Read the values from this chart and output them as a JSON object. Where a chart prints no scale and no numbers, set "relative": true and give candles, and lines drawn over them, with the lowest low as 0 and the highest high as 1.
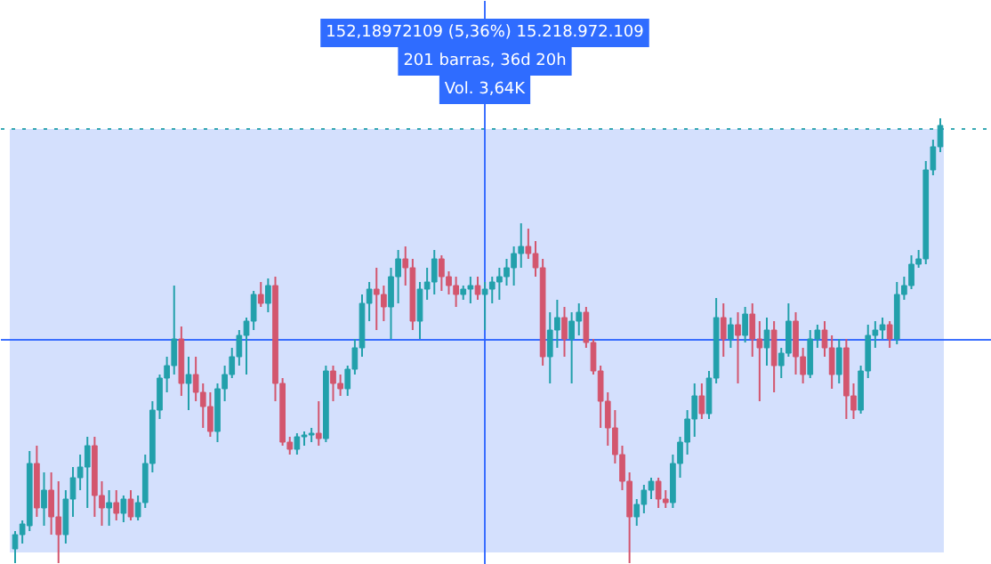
{
  "chart_data": {
    "type": "candlestick",
    "relative": true,
    "categories": [
      null,
      null,
      null,
      null,
      null,
      null,
      null,
      null,
      null,
      null,
      null,
      null,
      null,
      null,
      null,
      null,
      null,
      null,
      null,
      null,
      null,
      null,
      null,
      null,
      null,
      null,
      null,
      null,
      null,
      null,
      null,
      null,
      null,
      null,
      null,
      null,
      null,
      null,
      null,
      null,
      null,
      null,
      null,
      null,
      null,
      null,
      null,
      null,
      null,
      null,
      null,
      null,
      null,
      null,
      null,
      null,
      null,
      null,
      null,
      null,
      null,
      null,
      null,
      null,
      null,
      null,
      null,
      null,
      null,
      null,
      null,
      null,
      null,
      null,
      null,
      null,
      null,
      null,
      null,
      null,
      null,
      null,
      null,
      null,
      null,
      null,
      null,
      null,
      null,
      null,
      null,
      null,
      null,
      null,
      null,
      null,
      null,
      null,
      null,
      null,
      null,
      null,
      null,
      null,
      null,
      null,
      null,
      null,
      null,
      null,
      null,
      null,
      null,
      null,
      null,
      null,
      null,
      null,
      null,
      null,
      null,
      null,
      null,
      null,
      null,
      null,
      null,
      null,
      null
    ],
    "ohlc": [
      [
        0.032,
        0.072,
        0,
        0.064
      ],
      [
        0.064,
        0.096,
        0.044,
        0.088
      ],
      [
        0.084,
        0.252,
        0.072,
        0.224
      ],
      [
        0.224,
        0.264,
        0.104,
        0.124
      ],
      [
        0.124,
        0.204,
        0.084,
        0.164
      ],
      [
        0.164,
        0.204,
        0.064,
        0.104
      ],
      [
        0.104,
        0.184,
        0,
        0.064
      ],
      [
        0.064,
        0.164,
        0.044,
        0.144
      ],
      [
        0.144,
        0.216,
        0.104,
        0.192
      ],
      [
        0.192,
        0.244,
        0.164,
        0.216
      ],
      [
        0.216,
        0.284,
        0.124,
        0.264
      ],
      [
        0.264,
        0.284,
        0.104,
        0.152
      ],
      [
        0.152,
        0.184,
        0.084,
        0.124
      ],
      [
        0.124,
        0.164,
        0.084,
        0.136
      ],
      [
        0.136,
        0.164,
        0.096,
        0.112
      ],
      [
        0.112,
        0.152,
        0.092,
        0.144
      ],
      [
        0.144,
        0.164,
        0.096,
        0.104
      ],
      [
        0.104,
        0.152,
        0.096,
        0.136
      ],
      [
        0.136,
        0.244,
        0.124,
        0.224
      ],
      [
        0.224,
        0.364,
        0.204,
        0.344
      ],
      [
        0.344,
        0.424,
        0.324,
        0.416
      ],
      [
        0.416,
        0.464,
        0.384,
        0.444
      ],
      [
        0.444,
        0.624,
        0.424,
        0.504
      ],
      [
        0.504,
        0.532,
        0.376,
        0.404
      ],
      [
        0.404,
        0.464,
        0.344,
        0.424
      ],
      [
        0.424,
        0.464,
        0.364,
        0.384
      ],
      [
        0.384,
        0.404,
        0.304,
        0.352
      ],
      [
        0.352,
        0.384,
        0.284,
        0.296
      ],
      [
        0.296,
        0.404,
        0.272,
        0.392
      ],
      [
        0.392,
        0.444,
        0.364,
        0.424
      ],
      [
        0.424,
        0.484,
        0.416,
        0.464
      ],
      [
        0.464,
        0.524,
        0.444,
        0.512
      ],
      [
        0.512,
        0.552,
        0.424,
        0.544
      ],
      [
        0.544,
        0.612,
        0.524,
        0.604
      ],
      [
        0.604,
        0.632,
        0.576,
        0.584
      ],
      [
        0.584,
        0.64,
        0.564,
        0.624
      ],
      [
        0.624,
        0.644,
        0.364,
        0.404
      ],
      [
        0.404,
        0.416,
        0.264,
        0.272
      ],
      [
        0.272,
        0.284,
        0.244,
        0.256
      ],
      [
        0.256,
        0.292,
        0.244,
        0.284
      ],
      [
        0.284,
        0.296,
        0.264,
        0.288
      ],
      [
        0.288,
        0.304,
        0.272,
        0.292
      ],
      [
        0.292,
        0.364,
        0.264,
        0.28
      ],
      [
        0.28,
        0.444,
        0.272,
        0.432
      ],
      [
        0.432,
        0.444,
        0.364,
        0.404
      ],
      [
        0.404,
        0.424,
        0.376,
        0.392
      ],
      [
        0.392,
        0.444,
        0.376,
        0.436
      ],
      [
        0.436,
        0.504,
        0.424,
        0.484
      ],
      [
        0.484,
        0.604,
        0.464,
        0.584
      ],
      [
        0.584,
        0.632,
        0.544,
        0.616
      ],
      [
        0.616,
        0.664,
        0.524,
        0.604
      ],
      [
        0.604,
        0.624,
        0.544,
        0.576
      ],
      [
        0.576,
        0.664,
        0.504,
        0.644
      ],
      [
        0.644,
        0.704,
        0.584,
        0.684
      ],
      [
        0.684,
        0.712,
        0.624,
        0.664
      ],
      [
        0.664,
        0.684,
        0.524,
        0.544
      ],
      [
        0.544,
        0.632,
        0.504,
        0.616
      ],
      [
        0.616,
        0.664,
        0.592,
        0.632
      ],
      [
        0.632,
        0.704,
        0.604,
        0.684
      ],
      [
        0.684,
        0.692,
        0.612,
        0.644
      ],
      [
        0.644,
        0.656,
        0.604,
        0.624
      ],
      [
        0.624,
        0.644,
        0.576,
        0.604
      ],
      [
        0.604,
        0.624,
        0.592,
        0.616
      ],
      [
        0.616,
        0.644,
        0.584,
        0.624
      ],
      [
        0.624,
        0.644,
        0.592,
        0.604
      ],
      [
        0.604,
        0.632,
        0.524,
        0.616
      ],
      [
        0.616,
        0.644,
        0.584,
        0.632
      ],
      [
        0.632,
        0.664,
        0.592,
        0.644
      ],
      [
        0.644,
        0.684,
        0.624,
        0.664
      ],
      [
        0.664,
        0.712,
        0.624,
        0.696
      ],
      [
        0.696,
        0.764,
        0.664,
        0.712
      ],
      [
        0.712,
        0.752,
        0.684,
        0.696
      ],
      [
        0.696,
        0.724,
        0.644,
        0.664
      ],
      [
        0.664,
        0.684,
        0.444,
        0.464
      ],
      [
        0.464,
        0.564,
        0.404,
        0.524
      ],
      [
        0.524,
        0.592,
        0.484,
        0.552
      ],
      [
        0.552,
        0.576,
        0.464,
        0.504
      ],
      [
        0.504,
        0.564,
        0.404,
        0.544
      ],
      [
        0.544,
        0.584,
        0.512,
        0.564
      ],
      [
        0.564,
        0.576,
        0.484,
        0.496
      ],
      [
        0.496,
        0.504,
        0.424,
        0.432
      ],
      [
        0.432,
        0.444,
        0.304,
        0.364
      ],
      [
        0.364,
        0.384,
        0.264,
        0.304
      ],
      [
        0.304,
        0.344,
        0.224,
        0.244
      ],
      [
        0.244,
        0.264,
        0.164,
        0.184
      ],
      [
        0.184,
        0.204,
        0,
        0.104
      ],
      [
        0.104,
        0.144,
        0.084,
        0.132
      ],
      [
        0.132,
        0.176,
        0.112,
        0.164
      ],
      [
        0.164,
        0.192,
        0.144,
        0.184
      ],
      [
        0.184,
        0.192,
        0.124,
        0.144
      ],
      [
        0.144,
        0.164,
        0.124,
        0.136
      ],
      [
        0.136,
        0.244,
        0.124,
        0.224
      ],
      [
        0.224,
        0.284,
        0.192,
        0.272
      ],
      [
        0.272,
        0.344,
        0.244,
        0.324
      ],
      [
        0.324,
        0.404,
        0.284,
        0.376
      ],
      [
        0.376,
        0.404,
        0.324,
        0.336
      ],
      [
        0.336,
        0.432,
        0.324,
        0.416
      ],
      [
        0.416,
        0.596,
        0.404,
        0.552
      ],
      [
        0.552,
        0.584,
        0.464,
        0.504
      ],
      [
        0.504,
        0.552,
        0.484,
        0.536
      ],
      [
        0.536,
        0.564,
        0.404,
        0.512
      ],
      [
        0.512,
        0.576,
        0.496,
        0.56
      ],
      [
        0.56,
        0.584,
        0.464,
        0.504
      ],
      [
        0.504,
        0.544,
        0.364,
        0.484
      ],
      [
        0.484,
        0.552,
        0.444,
        0.524
      ],
      [
        0.524,
        0.544,
        0.384,
        0.444
      ],
      [
        0.444,
        0.484,
        0.416,
        0.472
      ],
      [
        0.472,
        0.584,
        0.464,
        0.544
      ],
      [
        0.544,
        0.564,
        0.424,
        0.464
      ],
      [
        0.464,
        0.484,
        0.404,
        0.424
      ],
      [
        0.424,
        0.524,
        0.416,
        0.504
      ],
      [
        0.504,
        0.536,
        0.484,
        0.524
      ],
      [
        0.524,
        0.544,
        0.464,
        0.484
      ],
      [
        0.484,
        0.512,
        0.392,
        0.424
      ],
      [
        0.424,
        0.504,
        0.404,
        0.484
      ],
      [
        0.484,
        0.504,
        0.324,
        0.376
      ],
      [
        0.376,
        0.404,
        0.324,
        0.344
      ],
      [
        0.344,
        0.444,
        0.336,
        0.432
      ],
      [
        0.432,
        0.536,
        0.416,
        0.512
      ],
      [
        0.512,
        0.544,
        0.484,
        0.524
      ],
      [
        0.524,
        0.552,
        0.504,
        0.536
      ],
      [
        0.536,
        0.544,
        0.484,
        0.504
      ],
      [
        0.504,
        0.632,
        0.492,
        0.604
      ],
      [
        0.604,
        0.644,
        0.592,
        0.624
      ],
      [
        0.624,
        0.692,
        0.616,
        0.672
      ],
      [
        0.672,
        0.704,
        0.664,
        0.684
      ],
      [
        0.684,
        0.904,
        0.672,
        0.884
      ],
      [
        0.884,
        0.952,
        0.872,
        0.936
      ],
      [
        0.936,
        1.0,
        0.924,
        0.984
      ]
    ],
    "colors": [
      "#22a0ab",
      "#22a0ab",
      "#22a0ab",
      "#d3566e",
      "#22a0ab",
      "#d3566e",
      "#d3566e",
      "#22a0ab",
      "#22a0ab",
      "#22a0ab",
      "#22a0ab",
      "#d3566e",
      "#d3566e",
      "#22a0ab",
      "#d3566e",
      "#22a0ab",
      "#d3566e",
      "#22a0ab",
      "#22a0ab",
      "#22a0ab",
      "#22a0ab",
      "#22a0ab",
      "#22a0ab",
      "#d3566e",
      "#22a0ab",
      "#d3566e",
      "#d3566e",
      "#d3566e",
      "#22a0ab",
      "#22a0ab",
      "#22a0ab",
      "#22a0ab",
      "#22a0ab",
      "#22a0ab",
      "#d3566e",
      "#22a0ab",
      "#d3566e",
      "#d3566e",
      "#d3566e",
      "#22a0ab",
      "#22a0ab",
      "#22a0ab",
      "#d3566e",
      "#22a0ab",
      "#d3566e",
      "#d3566e",
      "#22a0ab",
      "#22a0ab",
      "#22a0ab",
      "#22a0ab",
      "#d3566e",
      "#d3566e",
      "#22a0ab",
      "#22a0ab",
      "#d3566e",
      "#d3566e",
      "#22a0ab",
      "#22a0ab",
      "#22a0ab",
      "#d3566e",
      "#d3566e",
      "#d3566e",
      "#22a0ab",
      "#22a0ab",
      "#d3566e",
      "#22a0ab",
      "#22a0ab",
      "#22a0ab",
      "#22a0ab",
      "#22a0ab",
      "#22a0ab",
      "#d3566e",
      "#d3566e",
      "#d3566e",
      "#22a0ab",
      "#22a0ab",
      "#d3566e",
      "#22a0ab",
      "#22a0ab",
      "#d3566e",
      "#d3566e",
      "#d3566e",
      "#d3566e",
      "#d3566e",
      "#d3566e",
      "#d3566e",
      "#22a0ab",
      "#22a0ab",
      "#22a0ab",
      "#d3566e",
      "#d3566e",
      "#22a0ab",
      "#22a0ab",
      "#22a0ab",
      "#22a0ab",
      "#d3566e",
      "#22a0ab",
      "#22a0ab",
      "#d3566e",
      "#22a0ab",
      "#d3566e",
      "#22a0ab",
      "#d3566e",
      "#d3566e",
      "#22a0ab",
      "#d3566e",
      "#22a0ab",
      "#22a0ab",
      "#d3566e",
      "#d3566e",
      "#22a0ab",
      "#22a0ab",
      "#d3566e",
      "#d3566e",
      "#22a0ab",
      "#d3566e",
      "#d3566e",
      "#22a0ab",
      "#22a0ab",
      "#22a0ab",
      "#22a0ab",
      "#d3566e",
      "#22a0ab",
      "#22a0ab",
      "#22a0ab",
      "#22a0ab",
      "#22a0ab",
      "#22a0ab",
      "#22a0ab"
    ],
    "bands": [
      {
        "axis": "y",
        "from": 0.024,
        "to": 0.976,
        "color": "#d4e0fd"
      }
    ],
    "ref_lines": [
      {
        "axis": "y",
        "value": 0.502,
        "color": "#2962ff",
        "line_style": "solid"
      },
      {
        "axis": "y",
        "value": 0.976,
        "color": "#22a0ab",
        "line_style": "dotted"
      }
    ],
    "annotations": [
      "152,18972109 (5,36%) 15.218.972.109",
      "201 barras, 36d 20h",
      "Vol. 3,64K"
    ]
  }
}
